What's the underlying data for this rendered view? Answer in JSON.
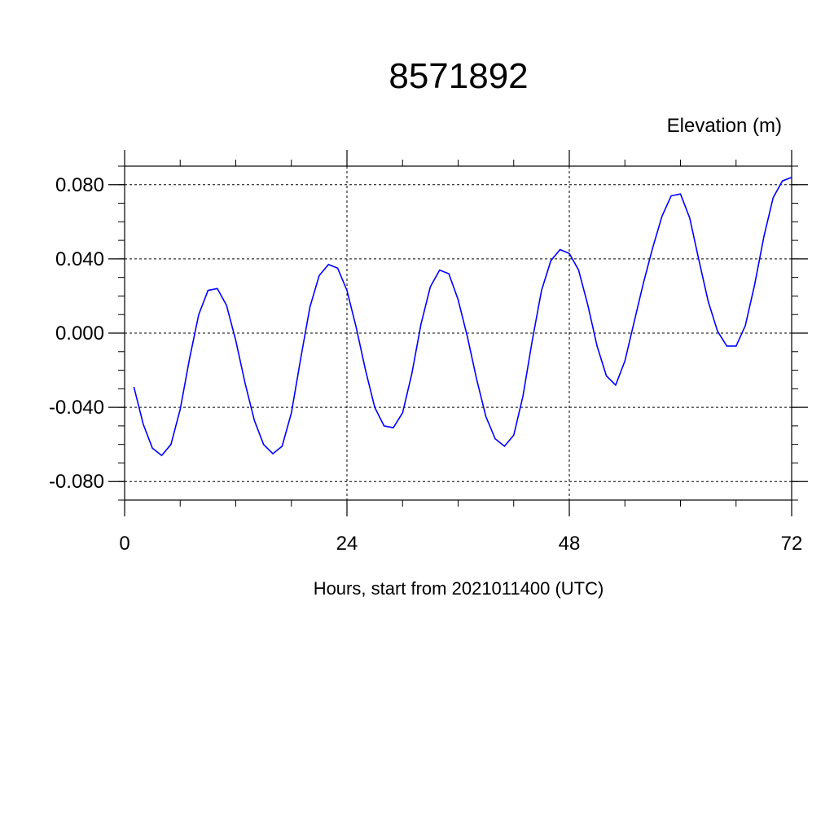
{
  "chart_data": {
    "type": "line",
    "title": "8571892",
    "ylabel": "Elevation (m)",
    "xlabel": "Hours, start from 2021011400 (UTC)",
    "xlim": [
      0,
      72
    ],
    "ylim": [
      -0.09,
      0.09
    ],
    "x_ticks": [
      0,
      24,
      48,
      72
    ],
    "x_tick_labels": [
      "0",
      "24",
      "48",
      "72"
    ],
    "y_ticks": [
      0.08,
      0.04,
      0.0,
      -0.04,
      -0.08
    ],
    "y_tick_labels": [
      "0.080",
      "0.040",
      "0.000",
      "-0.040",
      "-0.080"
    ],
    "grid": true,
    "colors": {
      "series": "#0000ff",
      "axes": "#000000"
    },
    "series": [
      {
        "x": [
          1,
          2,
          3,
          4,
          5,
          6,
          7,
          8,
          9,
          10,
          11,
          12,
          13,
          14,
          15,
          16,
          17,
          18,
          19,
          20,
          21,
          22,
          23,
          24,
          25,
          26,
          27,
          28,
          29,
          30,
          31,
          32,
          33,
          34,
          35,
          36,
          37,
          38,
          39,
          40,
          41,
          42,
          43,
          44,
          45,
          46,
          47,
          48,
          49,
          50,
          51,
          52,
          53,
          54,
          55,
          56,
          57,
          58,
          59,
          60,
          61,
          62,
          63,
          64,
          65,
          66,
          67,
          68,
          69,
          70,
          71,
          72
        ],
        "values": [
          -0.029,
          -0.049,
          -0.062,
          -0.066,
          -0.06,
          -0.041,
          -0.014,
          0.01,
          0.023,
          0.024,
          0.015,
          -0.004,
          -0.027,
          -0.047,
          -0.06,
          -0.065,
          -0.061,
          -0.043,
          -0.014,
          0.014,
          0.031,
          0.037,
          0.035,
          0.023,
          0.003,
          -0.02,
          -0.04,
          -0.05,
          -0.051,
          -0.043,
          -0.022,
          0.005,
          0.025,
          0.034,
          0.032,
          0.018,
          -0.002,
          -0.025,
          -0.045,
          -0.057,
          -0.061,
          -0.055,
          -0.034,
          -0.004,
          0.023,
          0.039,
          0.045,
          0.043,
          0.034,
          0.015,
          -0.007,
          -0.023,
          -0.028,
          -0.015,
          0.006,
          0.027,
          0.046,
          0.063,
          0.074,
          0.075,
          0.062,
          0.039,
          0.017,
          0.001,
          -0.007,
          -0.007,
          0.004,
          0.026,
          0.052,
          0.073,
          0.082,
          0.084
        ]
      }
    ]
  }
}
